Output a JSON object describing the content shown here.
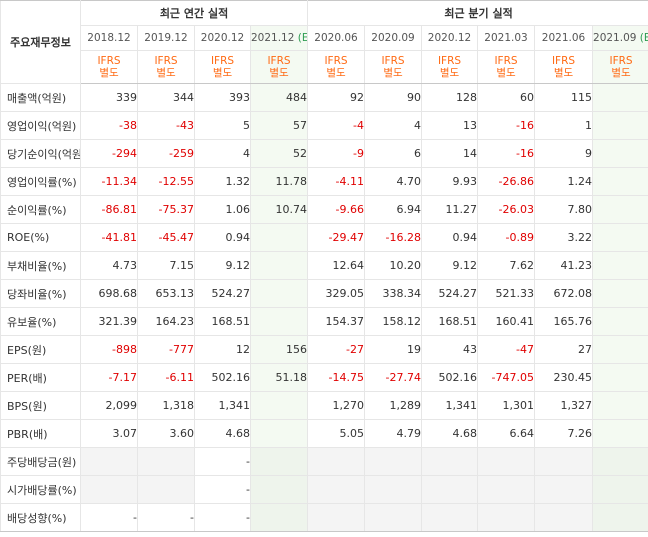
{
  "header": {
    "corner_label": "주요재무정보",
    "annual_group": "최근 연간 실적",
    "quarter_group": "최근 분기 실적",
    "estimate_mark": "(E)",
    "ifrs_line1": "IFRS",
    "ifrs_line2": "별도",
    "periods": [
      {
        "label": "2018.12",
        "estimate": false
      },
      {
        "label": "2019.12",
        "estimate": false
      },
      {
        "label": "2020.12",
        "estimate": false
      },
      {
        "label": "2021.12",
        "estimate": true
      },
      {
        "label": "2020.06",
        "estimate": false
      },
      {
        "label": "2020.09",
        "estimate": false
      },
      {
        "label": "2020.12",
        "estimate": false
      },
      {
        "label": "2021.03",
        "estimate": false
      },
      {
        "label": "2021.06",
        "estimate": false
      },
      {
        "label": "2021.09",
        "estimate": true
      }
    ]
  },
  "rows": [
    {
      "label": "매출액(억원)",
      "values": [
        "339",
        "344",
        "393",
        "484",
        "92",
        "90",
        "128",
        "60",
        "115",
        ""
      ]
    },
    {
      "label": "영업이익(억원)",
      "values": [
        "-38",
        "-43",
        "5",
        "57",
        "-4",
        "4",
        "13",
        "-16",
        "1",
        ""
      ]
    },
    {
      "label": "당기순이익(억원)",
      "values": [
        "-294",
        "-259",
        "4",
        "52",
        "-9",
        "6",
        "14",
        "-16",
        "9",
        ""
      ]
    },
    {
      "label": "영업이익률(%)",
      "values": [
        "-11.34",
        "-12.55",
        "1.32",
        "11.78",
        "-4.11",
        "4.70",
        "9.93",
        "-26.86",
        "1.24",
        ""
      ]
    },
    {
      "label": "순이익률(%)",
      "values": [
        "-86.81",
        "-75.37",
        "1.06",
        "10.74",
        "-9.66",
        "6.94",
        "11.27",
        "-26.03",
        "7.80",
        ""
      ]
    },
    {
      "label": "ROE(%)",
      "values": [
        "-41.81",
        "-45.47",
        "0.94",
        "",
        "-29.47",
        "-16.28",
        "0.94",
        "-0.89",
        "3.22",
        ""
      ]
    },
    {
      "label": "부채비율(%)",
      "values": [
        "4.73",
        "7.15",
        "9.12",
        "",
        "12.64",
        "10.20",
        "9.12",
        "7.62",
        "41.23",
        ""
      ]
    },
    {
      "label": "당좌비율(%)",
      "values": [
        "698.68",
        "653.13",
        "524.27",
        "",
        "329.05",
        "338.34",
        "524.27",
        "521.33",
        "672.08",
        ""
      ]
    },
    {
      "label": "유보율(%)",
      "values": [
        "321.39",
        "164.23",
        "168.51",
        "",
        "154.37",
        "158.12",
        "168.51",
        "160.41",
        "165.76",
        ""
      ]
    },
    {
      "label": "EPS(원)",
      "values": [
        "-898",
        "-777",
        "12",
        "156",
        "-27",
        "19",
        "43",
        "-47",
        "27",
        ""
      ]
    },
    {
      "label": "PER(배)",
      "values": [
        "-7.17",
        "-6.11",
        "502.16",
        "51.18",
        "-14.75",
        "-27.74",
        "502.16",
        "-747.05",
        "230.45",
        ""
      ]
    },
    {
      "label": "BPS(원)",
      "values": [
        "2,099",
        "1,318",
        "1,341",
        "",
        "1,270",
        "1,289",
        "1,341",
        "1,301",
        "1,327",
        ""
      ]
    },
    {
      "label": "PBR(배)",
      "values": [
        "3.07",
        "3.60",
        "4.68",
        "",
        "5.05",
        "4.79",
        "4.68",
        "6.64",
        "7.26",
        ""
      ]
    },
    {
      "label": "주당배당금(원)",
      "values": [
        "",
        "",
        "-",
        "",
        "",
        "",
        "",
        "",
        "",
        ""
      ]
    },
    {
      "label": "시가배당률(%)",
      "values": [
        "",
        "",
        "-",
        "",
        "",
        "",
        "",
        "",
        "",
        ""
      ]
    },
    {
      "label": "배당성향(%)",
      "values": [
        "-",
        "-",
        "-",
        "",
        "",
        "",
        "",
        "",
        "",
        ""
      ]
    }
  ]
}
